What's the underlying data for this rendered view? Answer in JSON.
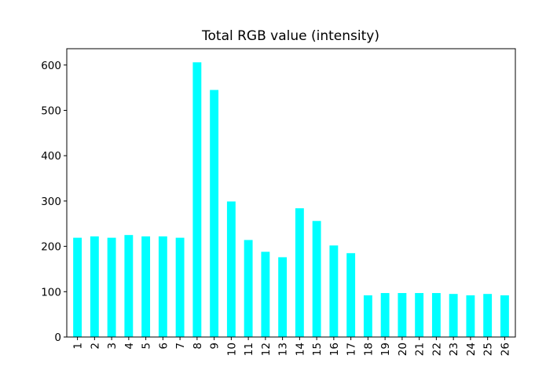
{
  "chart_data": {
    "type": "bar",
    "title": "Total RGB value (intensity)",
    "xlabel": "",
    "ylabel": "",
    "categories": [
      "1",
      "2",
      "3",
      "4",
      "5",
      "6",
      "7",
      "8",
      "9",
      "10",
      "11",
      "12",
      "13",
      "14",
      "15",
      "16",
      "17",
      "18",
      "19",
      "20",
      "21",
      "22",
      "23",
      "24",
      "25",
      "26"
    ],
    "values": [
      219,
      222,
      219,
      225,
      222,
      222,
      219,
      606,
      545,
      299,
      214,
      188,
      176,
      284,
      256,
      202,
      185,
      92,
      97,
      97,
      97,
      97,
      95,
      92,
      95,
      92
    ],
    "ylim": [
      0,
      636
    ],
    "yticks": [
      0,
      100,
      200,
      300,
      400,
      500,
      600
    ],
    "bar_color": "#00ffff",
    "grid": false,
    "legend": "none"
  }
}
